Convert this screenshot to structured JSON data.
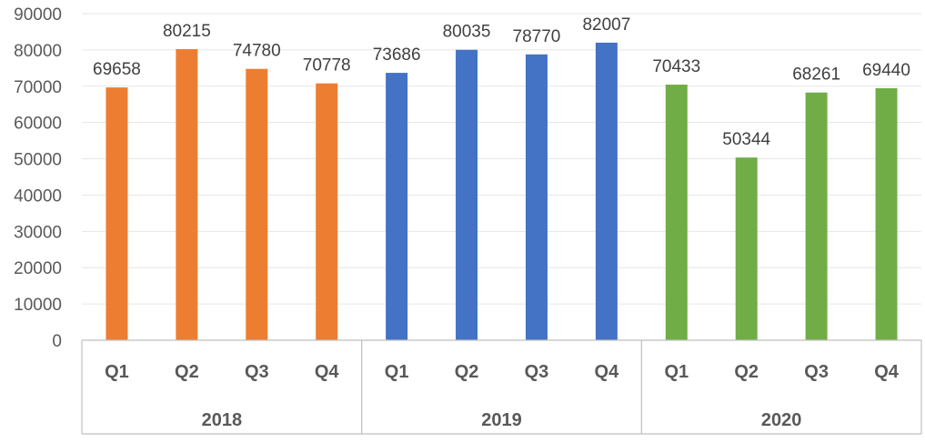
{
  "chart_data": {
    "type": "bar",
    "title": "",
    "xlabel": "",
    "ylabel": "",
    "ylim": [
      0,
      90000
    ],
    "yticks": [
      0,
      10000,
      20000,
      30000,
      40000,
      50000,
      60000,
      70000,
      80000,
      90000
    ],
    "grid": true,
    "legend": "none",
    "data_labels": true,
    "groups": [
      {
        "name": "2018",
        "color": "#ED7D31",
        "categories": [
          "Q1",
          "Q2",
          "Q3",
          "Q4"
        ],
        "values": [
          69658,
          80215,
          74780,
          70778
        ]
      },
      {
        "name": "2019",
        "color": "#4472C4",
        "categories": [
          "Q1",
          "Q2",
          "Q3",
          "Q4"
        ],
        "values": [
          73686,
          80035,
          78770,
          82007
        ]
      },
      {
        "name": "2020",
        "color": "#70AD47",
        "categories": [
          "Q1",
          "Q2",
          "Q3",
          "Q4"
        ],
        "values": [
          70433,
          50344,
          68261,
          69440
        ]
      }
    ]
  }
}
